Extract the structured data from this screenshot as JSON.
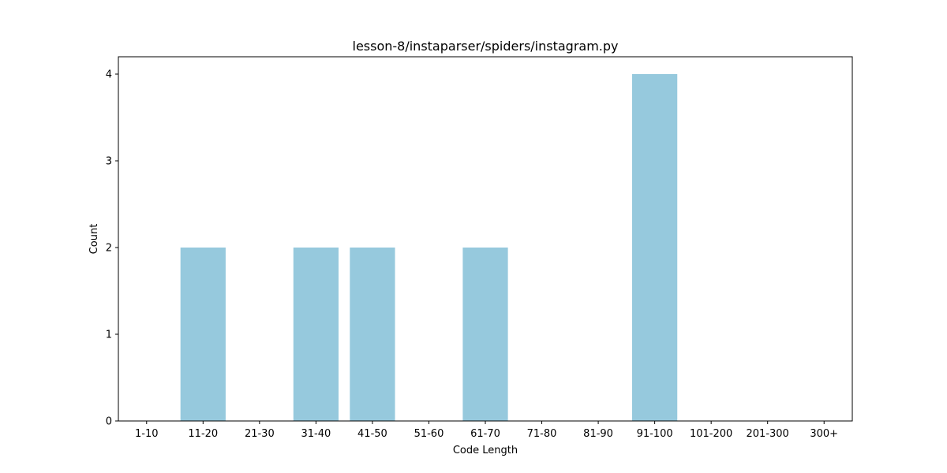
{
  "chart_data": {
    "type": "bar",
    "title": "lesson-8/instaparser/spiders/instagram.py",
    "xlabel": "Code Length",
    "ylabel": "Count",
    "categories": [
      "1-10",
      "11-20",
      "21-30",
      "31-40",
      "41-50",
      "51-60",
      "61-70",
      "71-80",
      "81-90",
      "91-100",
      "101-200",
      "201-300",
      "300+"
    ],
    "values": [
      0,
      2,
      0,
      2,
      2,
      0,
      2,
      0,
      0,
      4,
      0,
      0,
      0
    ],
    "yticks": [
      0,
      1,
      2,
      3,
      4
    ],
    "ylim": [
      0,
      4.2
    ],
    "bar_color": "#96c9dd",
    "grid": false,
    "legend": "none"
  }
}
